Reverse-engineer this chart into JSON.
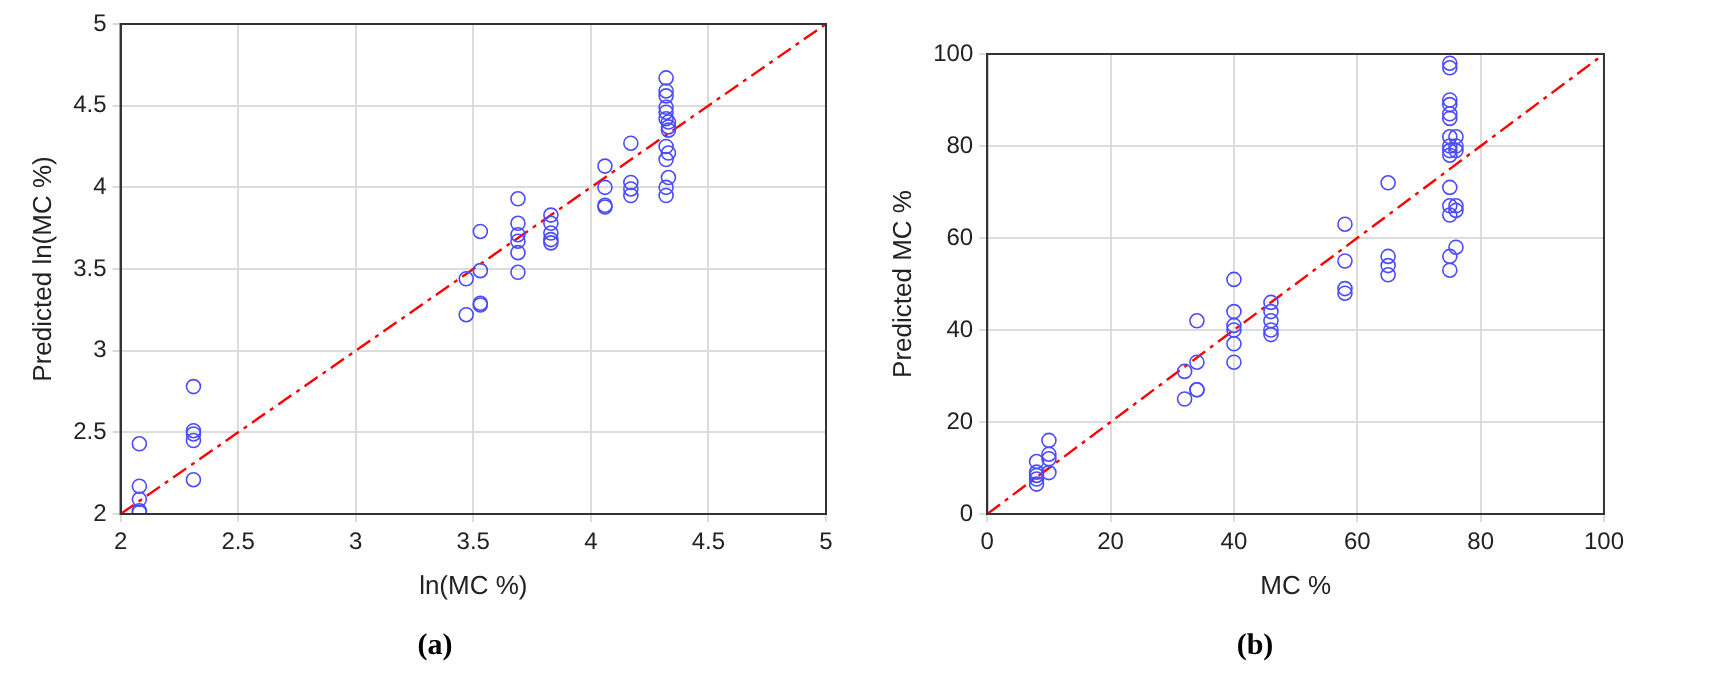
{
  "chart_data": [
    {
      "type": "scatter",
      "xlabel": "ln(MC %)",
      "ylabel": "Predicted ln(MC %)",
      "xlim": [
        2,
        5
      ],
      "ylim": [
        2,
        5
      ],
      "xticks": [
        2,
        2.5,
        3,
        3.5,
        4,
        4.5,
        5
      ],
      "yticks": [
        2,
        2.5,
        3,
        3.5,
        4,
        4.5,
        5
      ],
      "grid": true,
      "legend": false,
      "annotations": [
        "(a)"
      ],
      "series": [
        {
          "marker": "circle",
          "color": "#4b4bff",
          "x": [
            2.08,
            2.08,
            2.08,
            2.08,
            2.08,
            2.31,
            2.31,
            2.31,
            2.31,
            2.31,
            3.47,
            3.47,
            3.53,
            3.53,
            3.53,
            3.53,
            3.69,
            3.69,
            3.69,
            3.69,
            3.69,
            3.69,
            3.83,
            3.83,
            3.83,
            3.83,
            3.83,
            4.06,
            4.06,
            4.06,
            4.06,
            4.17,
            4.17,
            4.17,
            4.17,
            4.32,
            4.32,
            4.32,
            4.32,
            4.32,
            4.32,
            4.33,
            4.33,
            4.33,
            4.32,
            4.33,
            4.32,
            4.33,
            4.32,
            4.32
          ],
          "values": [
            2.43,
            2.17,
            2.09,
            2.02,
            2.01,
            2.78,
            2.51,
            2.49,
            2.45,
            2.21,
            3.44,
            3.22,
            3.73,
            3.49,
            3.29,
            3.28,
            3.93,
            3.78,
            3.71,
            3.67,
            3.6,
            3.48,
            3.83,
            3.78,
            3.72,
            3.68,
            3.66,
            4.13,
            4.0,
            3.89,
            3.88,
            4.27,
            4.03,
            3.99,
            3.95,
            4.67,
            4.59,
            4.56,
            4.49,
            4.46,
            4.42,
            4.4,
            4.37,
            4.35,
            4.25,
            4.21,
            4.17,
            4.06,
            4.0,
            3.95
          ]
        },
        {
          "type": "line",
          "color": "#ff0000",
          "line_style": "dashed",
          "x": [
            2,
            5
          ],
          "values": [
            2,
            5
          ]
        }
      ]
    },
    {
      "type": "scatter",
      "xlabel": "MC %",
      "ylabel": "Predicted MC %",
      "xlim": [
        0,
        100
      ],
      "ylim": [
        0,
        100
      ],
      "xticks": [
        0,
        20,
        40,
        60,
        80,
        100
      ],
      "yticks": [
        0,
        20,
        40,
        60,
        80,
        100
      ],
      "grid": true,
      "legend": false,
      "annotations": [
        "(b)"
      ],
      "series": [
        {
          "marker": "circle",
          "color": "#4b4bff",
          "x": [
            8,
            8,
            8,
            8,
            8,
            10,
            10,
            10,
            10,
            32,
            32,
            34,
            34,
            34,
            34,
            40,
            40,
            40,
            40,
            40,
            40,
            46,
            46,
            46,
            46,
            46,
            58,
            58,
            58,
            58,
            65,
            65,
            65,
            65,
            75,
            75,
            75,
            75,
            75,
            75,
            75,
            75,
            75,
            75,
            76,
            76,
            76,
            75,
            75,
            75,
            75,
            75,
            76,
            76,
            76
          ],
          "values": [
            11.4,
            9.1,
            8.4,
            7.6,
            6.5,
            16,
            13,
            12,
            9,
            31,
            25,
            42,
            33,
            27,
            27,
            51,
            44,
            41,
            40,
            37,
            33,
            46,
            44,
            42,
            40,
            39,
            63,
            55,
            49,
            48,
            72,
            56,
            54,
            52,
            98,
            97,
            90,
            89,
            87,
            86,
            82,
            80,
            79,
            78,
            82,
            80,
            79,
            71,
            67,
            65,
            56,
            53,
            67,
            66,
            58
          ]
        },
        {
          "type": "line",
          "color": "#ff0000",
          "line_style": "dashed",
          "x": [
            0,
            100
          ],
          "values": [
            0,
            100
          ]
        }
      ]
    }
  ]
}
